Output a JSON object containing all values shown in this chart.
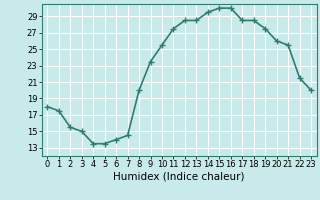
{
  "x": [
    0,
    1,
    2,
    3,
    4,
    5,
    6,
    7,
    8,
    9,
    10,
    11,
    12,
    13,
    14,
    15,
    16,
    17,
    18,
    19,
    20,
    21,
    22,
    23
  ],
  "y": [
    18.0,
    17.5,
    15.5,
    15.0,
    13.5,
    13.5,
    14.0,
    14.5,
    20.0,
    23.5,
    25.5,
    27.5,
    28.5,
    28.5,
    29.5,
    30.0,
    30.0,
    28.5,
    28.5,
    27.5,
    26.0,
    25.5,
    21.5,
    20.0
  ],
  "xlim": [
    -0.5,
    23.5
  ],
  "ylim": [
    12,
    30.5
  ],
  "yticks": [
    13,
    15,
    17,
    19,
    21,
    23,
    25,
    27,
    29
  ],
  "xticks": [
    0,
    1,
    2,
    3,
    4,
    5,
    6,
    7,
    8,
    9,
    10,
    11,
    12,
    13,
    14,
    15,
    16,
    17,
    18,
    19,
    20,
    21,
    22,
    23
  ],
  "xlabel": "Humidex (Indice chaleur)",
  "line_color": "#2e7d6e",
  "bg_color": "#c8eaea",
  "grid_color": "#ffffff",
  "marker": "+",
  "marker_size": 4,
  "line_width": 1.2,
  "xlabel_fontsize": 7.5,
  "tick_fontsize": 6
}
